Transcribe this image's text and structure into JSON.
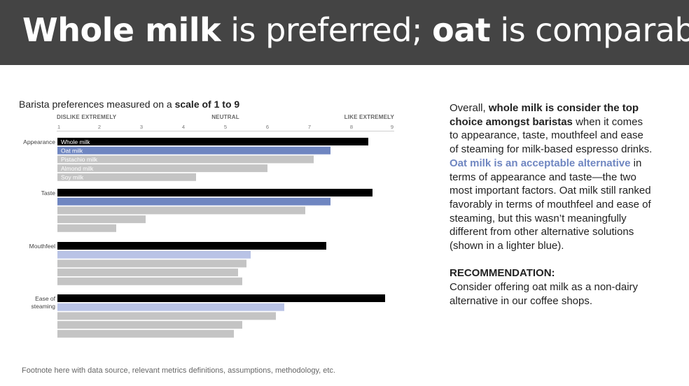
{
  "header": {
    "title_part1": "Whole milk",
    "title_part2": " is preferred; ",
    "title_part3": "oat",
    "title_part4": " is comparable"
  },
  "chart_title": {
    "prefix": "Barista preferences measured on a ",
    "bold": "scale of 1 to 9"
  },
  "scale_labels": {
    "left": "DISLIKE EXTREMELY",
    "middle": "NEUTRAL",
    "right": "LIKE EXTREMELY"
  },
  "chart_data": {
    "type": "bar",
    "orientation": "horizontal",
    "xlim": [
      1,
      9
    ],
    "x_ticks": [
      1,
      2,
      3,
      4,
      5,
      6,
      7,
      8,
      9
    ],
    "grid": false,
    "legend": "labels inside first group bars",
    "categories": [
      "Appearance",
      "Taste",
      "Mouthfeel",
      "Ease of steaming"
    ],
    "series": [
      {
        "name": "Whole milk",
        "values": [
          8.4,
          8.5,
          7.4,
          8.8
        ]
      },
      {
        "name": "Oat milk",
        "values": [
          7.5,
          7.5,
          5.6,
          6.4
        ]
      },
      {
        "name": "Pistachio milk",
        "values": [
          7.1,
          6.9,
          5.5,
          6.2
        ]
      },
      {
        "name": "Almond milk",
        "values": [
          6.0,
          3.1,
          5.3,
          5.4
        ]
      },
      {
        "name": "Soy milk",
        "values": [
          4.3,
          2.4,
          5.4,
          5.2
        ]
      }
    ],
    "series_colors": {
      "Whole milk": "#000000",
      "Oat milk": "#6f86c1",
      "Oat milk (light)": "#b9c3e6",
      "other": "#c4c4c4"
    }
  },
  "paragraph": {
    "t1": "Overall, ",
    "t2": "whole milk is consider the top choice amongst baristas",
    "t3": " when it comes to appearance, taste, mouthfeel and ease of steaming for milk-based espresso drinks. ",
    "t4": "Oat milk is an acceptable alternative",
    "t5": " in terms of appearance and taste—the two most important factors. Oat milk still ranked favorably in terms of mouthfeel and ease of steaming, but this wasn’t meaningfully different from other alternative solutions (shown in a lighter blue)."
  },
  "recommendation": {
    "heading": "RECOMMENDATION:",
    "text": "Consider offering oat milk as a non-dairy alternative in our coffee shops."
  },
  "footnote": "Footnote here with data source, relevant metrics definitions, assumptions, methodology, etc."
}
